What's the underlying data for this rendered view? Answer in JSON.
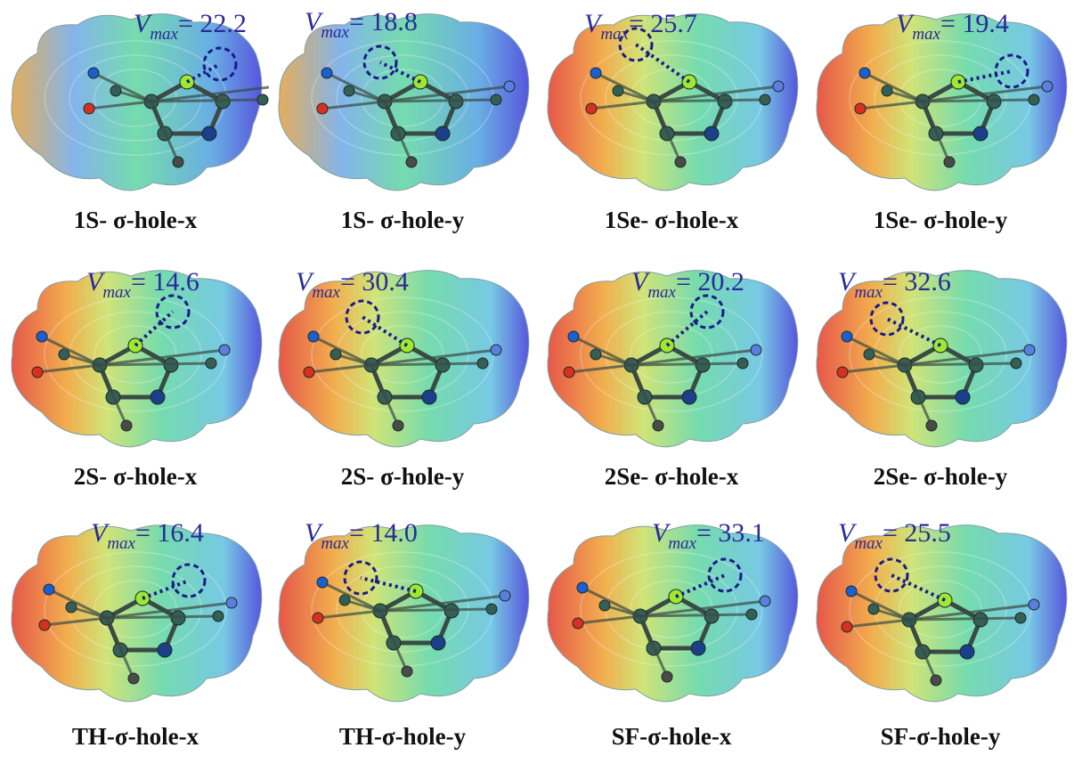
{
  "vmax_symbol": "V",
  "vmax_subscript": "max",
  "panels": [
    {
      "caption": "1S- σ-hole-x",
      "vmax": "22.2"
    },
    {
      "caption": "1S- σ-hole-y",
      "vmax": "18.8"
    },
    {
      "caption": "1Se- σ-hole-x",
      "vmax": "25.7"
    },
    {
      "caption": "1Se- σ-hole-y",
      "vmax": "19.4"
    },
    {
      "caption": "2S- σ-hole-x",
      "vmax": "14.6"
    },
    {
      "caption": "2S- σ-hole-y",
      "vmax": "30.4"
    },
    {
      "caption": "2Se- σ-hole-x",
      "vmax": "20.2"
    },
    {
      "caption": "2Se- σ-hole-y",
      "vmax": "32.6"
    },
    {
      "caption": "TH-σ-hole-x",
      "vmax": "16.4"
    },
    {
      "caption": "TH-σ-hole-y",
      "vmax": "14.0"
    },
    {
      "caption": "SF-σ-hole-x",
      "vmax": "33.1"
    },
    {
      "caption": "SF-σ-hole-y",
      "vmax": "25.5"
    }
  ],
  "colors": {
    "positive": "#3a3ad8",
    "neutral": "#5ed6a0",
    "negative": "#e23a2a",
    "label": "#2a2a9a",
    "caption": "#111111"
  }
}
